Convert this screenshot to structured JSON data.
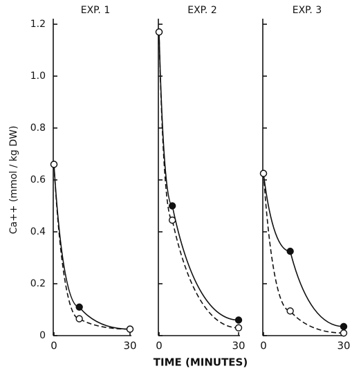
{
  "chart_data": [
    {
      "type": "line",
      "title": "EXP. 1",
      "ylabel": "Ca++ (mmol / kg DW)",
      "xlabel": "TIME (MINUTES)",
      "x": [
        0,
        10,
        30
      ],
      "xlim": [
        0,
        30
      ],
      "xticks": [
        0,
        30
      ],
      "ylim": [
        0,
        1.2
      ],
      "yticks": [
        0,
        0.2,
        0.4,
        0.6,
        0.8,
        {
          "value": 1,
          "label": "1.0"
        },
        1.2
      ],
      "series": [
        {
          "color": "#111111",
          "style": "solid",
          "marker": "filled",
          "values": [
            0.66,
            0.11,
            0.025
          ]
        },
        {
          "color": "#111111",
          "style": "dashed",
          "marker": "open",
          "values": [
            0.66,
            0.065,
            0.025
          ]
        }
      ]
    },
    {
      "type": "line",
      "title": "EXP. 2",
      "x": [
        0,
        5,
        30
      ],
      "xlim": [
        0,
        30
      ],
      "xticks": [
        0,
        30
      ],
      "ylim": [
        0,
        1.2
      ],
      "series": [
        {
          "color": "#111111",
          "style": "solid",
          "marker": "filled",
          "values": [
            1.17,
            0.5,
            0.06
          ]
        },
        {
          "color": "#111111",
          "style": "dashed",
          "marker": "open",
          "values": [
            1.17,
            0.445,
            0.03
          ]
        }
      ]
    },
    {
      "type": "line",
      "title": "EXP. 3",
      "x": [
        0,
        10,
        30
      ],
      "xlim": [
        0,
        30
      ],
      "xticks": [
        0,
        30
      ],
      "ylim": [
        0,
        1.2
      ],
      "series": [
        {
          "color": "#111111",
          "style": "solid",
          "marker": "filled",
          "values": [
            0.625,
            0.325,
            0.035
          ]
        },
        {
          "color": "#111111",
          "style": "dashed",
          "marker": "open",
          "values": [
            0.625,
            0.095,
            0.01
          ]
        }
      ]
    }
  ]
}
